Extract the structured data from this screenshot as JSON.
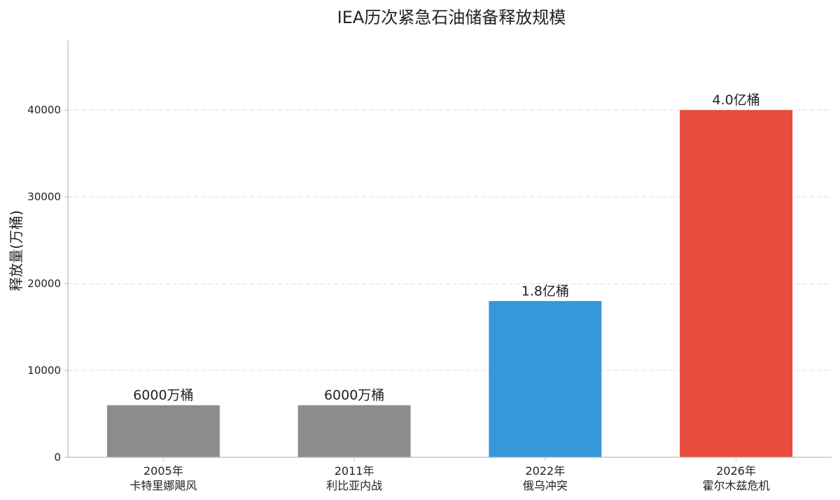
{
  "chart_data": {
    "type": "bar",
    "title": "IEA历次紧急石油储备释放规模",
    "xlabel": "",
    "ylabel": "释放量(万桶)",
    "ylim": [
      0,
      48000
    ],
    "yticks": [
      0,
      10000,
      20000,
      30000,
      40000
    ],
    "grid": "y-dashed",
    "categories": [
      {
        "line1": "2005年",
        "line2": "卡特里娜飓风"
      },
      {
        "line1": "2011年",
        "line2": "利比亚内战"
      },
      {
        "line1": "2022年",
        "line2": "俄乌冲突"
      },
      {
        "line1": "2026年",
        "line2": "霍尔木兹危机"
      }
    ],
    "values": [
      6000,
      6000,
      18000,
      40000
    ],
    "data_labels": [
      "6000万桶",
      "6000万桶",
      "1.8亿桶",
      "4.0亿桶"
    ],
    "colors": [
      "#8c8c8c",
      "#8c8c8c",
      "#3498db",
      "#e74c3c"
    ]
  }
}
